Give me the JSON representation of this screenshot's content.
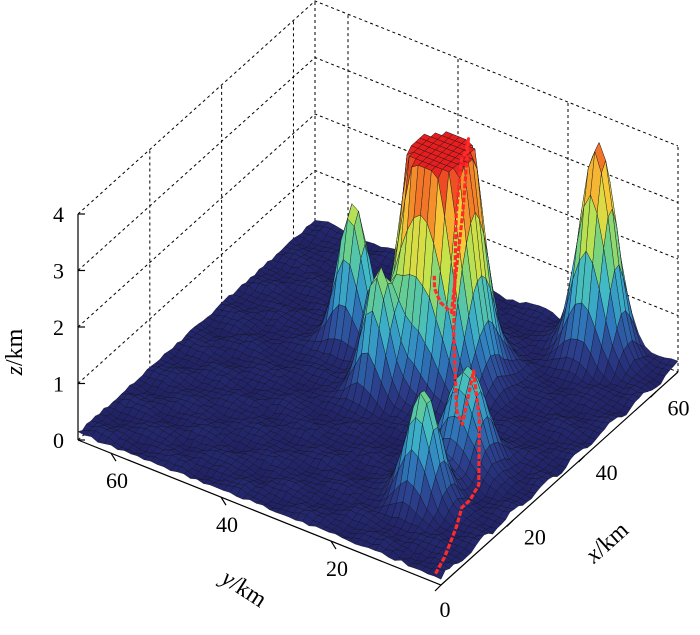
{
  "chart_data": {
    "type": "surface3d",
    "title": "",
    "x_axis": {
      "label_var": "x",
      "label_unit": "/km",
      "ticks": [
        0,
        20,
        40,
        60
      ],
      "range": [
        0,
        66
      ]
    },
    "y_axis": {
      "label_var": "y",
      "label_unit": "/km",
      "ticks": [
        20,
        40,
        60
      ],
      "range": [
        0,
        66
      ]
    },
    "z_axis": {
      "label_var": "z",
      "label_unit": "/km",
      "ticks": [
        0,
        1,
        2,
        3,
        4
      ],
      "range": [
        0,
        4
      ]
    },
    "peaks": [
      {
        "x": 15,
        "y": 13,
        "height": 2.0,
        "width": 2.6
      },
      {
        "x": 27,
        "y": 13,
        "height": 1.7,
        "width": 3.0
      },
      {
        "x": 34,
        "y": 34,
        "height": 1.9,
        "width": 2.2
      },
      {
        "x": 43,
        "y": 44,
        "height": 2.4,
        "width": 2.4
      },
      {
        "x": 43,
        "y": 30,
        "height": 3.35,
        "width": 4.2
      },
      {
        "x": 44,
        "y": 27,
        "height": 3.45,
        "width": 4.0
      },
      {
        "x": 47,
        "y": 30,
        "height": 3.1,
        "width": 3.6
      },
      {
        "x": 62,
        "y": 12,
        "height": 3.75,
        "width": 2.8
      }
    ],
    "path": {
      "color": "#ff2a2a",
      "points": [
        [
          0,
          1.0
        ],
        [
          4,
          2.0
        ],
        [
          8,
          3.5
        ],
        [
          12,
          5.0
        ],
        [
          15,
          6.0
        ],
        [
          18,
          6.5
        ],
        [
          22,
          7.5
        ],
        [
          26,
          10.0
        ],
        [
          29,
          13.0
        ],
        [
          32,
          17.0
        ],
        [
          35,
          20.0
        ],
        [
          38,
          22.5
        ],
        [
          41,
          24.0
        ],
        [
          44,
          25.0
        ],
        [
          46,
          25.5
        ],
        [
          49,
          27.0
        ],
        [
          52,
          30.0
        ],
        [
          55,
          34.0
        ],
        [
          58,
          38.0
        ],
        [
          61,
          41.0
        ],
        [
          64,
          43.0
        ]
      ]
    },
    "colormap": [
      "#1f1c5e",
      "#2c3e8c",
      "#2f7fc0",
      "#3fb9c9",
      "#6bd08a",
      "#c6e34a",
      "#f7d23a",
      "#f58a2a",
      "#e51f1f"
    ],
    "background_level": 0.1,
    "grid_on": true
  }
}
